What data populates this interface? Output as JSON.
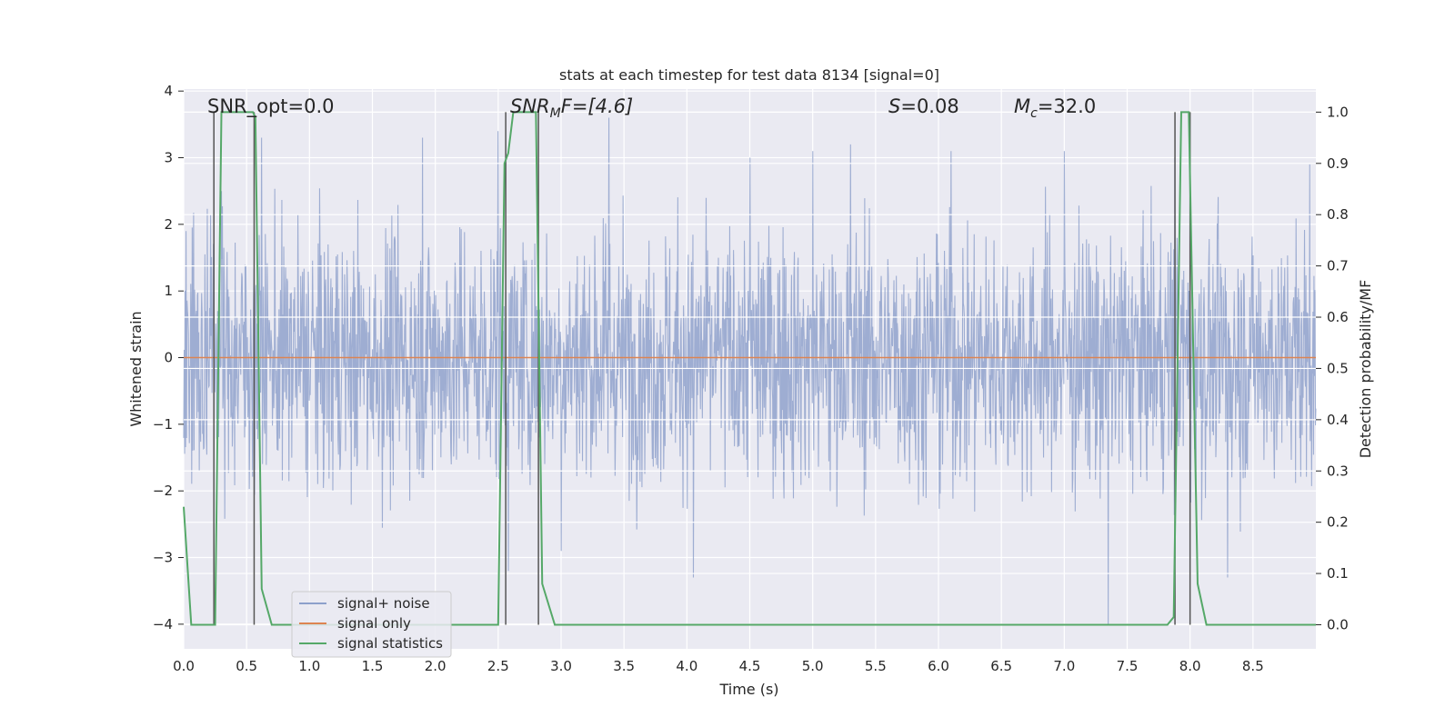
{
  "chart_data": {
    "type": "line",
    "title": "stats at each timestep for test data 8134 [signal=0]",
    "xlabel": "Time (s)",
    "ylabel_left": "Whitened strain",
    "ylabel_right": "Detection probability/MF",
    "xlim": [
      0,
      9.0
    ],
    "ylim_left": [
      -4.37,
      4.03
    ],
    "ylim_right": [
      -0.047,
      1.045
    ],
    "x_ticks": [
      "0.0",
      "0.5",
      "1.0",
      "1.5",
      "2.0",
      "2.5",
      "3.0",
      "3.5",
      "4.0",
      "4.5",
      "5.0",
      "5.5",
      "6.0",
      "6.5",
      "7.0",
      "7.5",
      "8.0",
      "8.5"
    ],
    "y_left_ticks": [
      "4",
      "3",
      "2",
      "1",
      "0",
      "−1",
      "−2",
      "−3",
      "−4"
    ],
    "y_right_ticks": [
      "1.0",
      "0.9",
      "0.8",
      "0.7",
      "0.6",
      "0.5",
      "0.4",
      "0.3",
      "0.2",
      "0.1",
      "0.0"
    ],
    "grid": true,
    "legend_position": "lower-left",
    "annotations": {
      "snr_opt": "SNR_opt=0.0",
      "snr_mf_main": "SNR",
      "snr_mf_sub": "M",
      "snr_mf_rest": "F=[4.6]",
      "s_var": "S",
      "s_val": "=0.08",
      "mc_var": "M",
      "mc_sub": "c",
      "mc_val": "=32.0"
    },
    "series": [
      {
        "name": "signal+ noise",
        "color": "#8da0cb",
        "description": "whitened noise trace",
        "mean": 0.0,
        "std": 0.95,
        "sample_peaks": [
          [
            0.02,
            1.9
          ],
          [
            0.3,
            2.5
          ],
          [
            0.62,
            3.3
          ],
          [
            1.9,
            3.3
          ],
          [
            2.5,
            3.4
          ],
          [
            2.58,
            -3.2
          ],
          [
            3.38,
            3.6
          ],
          [
            3.0,
            -2.9
          ],
          [
            4.05,
            -3.3
          ],
          [
            4.5,
            3.0
          ],
          [
            5.0,
            3.1
          ],
          [
            5.3,
            3.2
          ],
          [
            6.1,
            3.1
          ],
          [
            7.0,
            3.1
          ],
          [
            7.35,
            -4.0
          ],
          [
            7.88,
            3.0
          ],
          [
            8.3,
            -3.3
          ],
          [
            8.95,
            2.9
          ]
        ]
      },
      {
        "name": "signal only",
        "color": "#dd8452",
        "x": [
          0.0,
          9.0
        ],
        "y": [
          0.0,
          0.0
        ]
      },
      {
        "name": "signal statistics",
        "color": "#55a868",
        "axis": "right",
        "x": [
          0.0,
          0.06,
          0.25,
          0.3,
          0.55,
          0.57,
          0.62,
          0.7,
          2.5,
          2.55,
          2.58,
          2.62,
          2.8,
          2.85,
          2.95,
          7.82,
          7.87,
          7.93,
          7.99,
          8.06,
          8.13,
          9.0
        ],
        "y": [
          0.23,
          0.0,
          0.0,
          1.0,
          1.0,
          0.99,
          0.07,
          0.0,
          0.0,
          0.9,
          0.92,
          1.0,
          1.0,
          0.08,
          0.0,
          0.0,
          0.015,
          1.0,
          1.0,
          0.08,
          0.0,
          0.0
        ]
      }
    ],
    "markers": {
      "color": "#555555",
      "x": [
        0.24,
        0.56,
        2.56,
        2.82,
        7.88,
        8.0
      ]
    }
  }
}
